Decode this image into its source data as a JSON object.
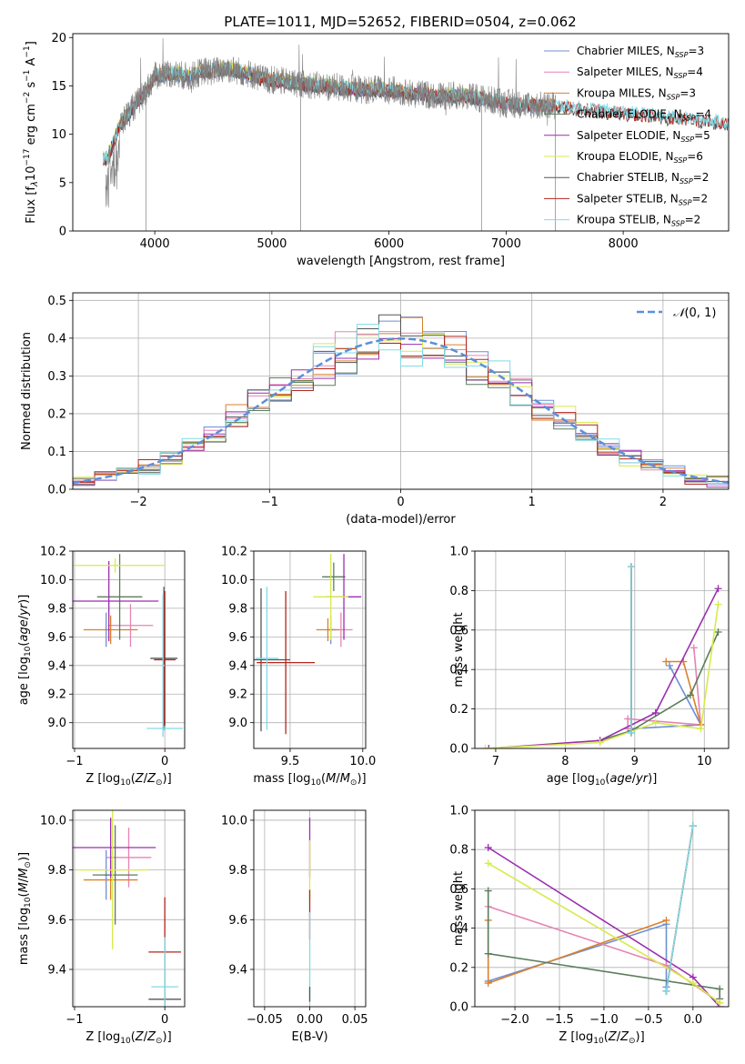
{
  "figure": {
    "title": "PLATE=1011, MJD=52652, FIBERID=0504, z=0.062"
  },
  "series_colors": {
    "Chabrier MILES": "#6c8fd6",
    "Salpeter MILES": "#e584b5",
    "Kroupa MILES": "#d9812c",
    "Chabrier ELODIE": "#5b7d5b",
    "Salpeter ELODIE": "#9b2fb0",
    "Kroupa ELODIE": "#d8ea4c",
    "Chabrier STELIB": "#555555",
    "Salpeter STELIB": "#b3261e",
    "Kroupa STELIB": "#80dbe6"
  },
  "chart_data": [
    {
      "id": "spectrum",
      "type": "line",
      "xlabel": "wavelength [Angstrom, rest frame]",
      "ylabel": "Flux [f_λ 10^-17 erg cm^-2 s^-1 A^-1]",
      "xlim": [
        3300,
        8900
      ],
      "ylim": [
        0,
        20.4
      ],
      "xticks": [
        4000,
        5000,
        6000,
        7000,
        8000
      ],
      "yticks": [
        0,
        5,
        10,
        15,
        20
      ],
      "grid": false,
      "legend_position": "top-right",
      "legend": [
        {
          "label": "Chabrier MILES, N_SSP=3",
          "series": "Chabrier MILES"
        },
        {
          "label": "Salpeter MILES, N_SSP=4",
          "series": "Salpeter MILES"
        },
        {
          "label": "Kroupa MILES, N_SSP=3",
          "series": "Kroupa MILES"
        },
        {
          "label": "Chabrier ELODIE, N_SSP=4",
          "series": "Chabrier ELODIE"
        },
        {
          "label": "Salpeter ELODIE, N_SSP=5",
          "series": "Salpeter ELODIE"
        },
        {
          "label": "Kroupa ELODIE, N_SSP=6",
          "series": "Kroupa ELODIE"
        },
        {
          "label": "Chabrier STELIB, N_SSP=2",
          "series": "Chabrier STELIB"
        },
        {
          "label": "Salpeter STELIB, N_SSP=2",
          "series": "Salpeter STELIB"
        },
        {
          "label": "Kroupa STELIB, N_SSP=2",
          "series": "Kroupa STELIB"
        }
      ],
      "observed": {
        "x": [
          3600,
          3700,
          3800,
          3900,
          4000,
          4100,
          4200,
          4300,
          4400,
          4500,
          4600,
          4700,
          4800,
          4900,
          5000,
          5200,
          5400,
          5600,
          5800,
          6000,
          6200,
          6400,
          6600,
          6800,
          7000,
          7200,
          7400
        ],
        "y": [
          7.5,
          11.0,
          12.5,
          14.0,
          16.0,
          16.3,
          16.2,
          15.9,
          16.5,
          16.5,
          16.8,
          16.6,
          16.3,
          15.8,
          15.6,
          15.3,
          15.0,
          14.8,
          14.6,
          14.6,
          14.2,
          14.0,
          14.0,
          13.7,
          13.2,
          13.0,
          12.9
        ]
      },
      "model_end": {
        "Chabrier MILES": 7400,
        "Salpeter MILES": 7400,
        "Kroupa MILES": 7400,
        "Chabrier ELODIE": 6800,
        "Salpeter ELODIE": 6800,
        "Kroupa ELODIE": 6800,
        "Chabrier STELIB": 8950,
        "Salpeter STELIB": 8950,
        "Kroupa STELIB": 8950
      }
    },
    {
      "id": "residuals",
      "type": "line",
      "xlabel": "(data-model)/error",
      "ylabel": "Normed distribution",
      "xlim": [
        -2.5,
        2.5
      ],
      "ylim": [
        0,
        0.52
      ],
      "xticks": [
        -2,
        -1,
        0,
        1,
        2
      ],
      "yticks": [
        0.0,
        0.1,
        0.2,
        0.3,
        0.4,
        0.5
      ],
      "grid": true,
      "legend_position": "top-right",
      "legend": [
        {
          "label": "N(0, 1)"
        }
      ],
      "reference": {
        "name": "N(0, 1)",
        "mean": 0,
        "sigma": 1,
        "color": "#5b8fd9"
      },
      "histogram_bins": 30
    },
    {
      "id": "age-vs-Z",
      "type": "scatter",
      "xlabel": "Z [log10(Z/Z☉)]",
      "ylabel": "age [log10(age/yr)]",
      "xlim": [
        -1.02,
        0.22
      ],
      "ylim": [
        8.82,
        10.2
      ],
      "xticks": [
        -1,
        0
      ],
      "yticks": [
        9.0,
        9.2,
        9.4,
        9.6,
        9.8,
        10.0,
        10.2
      ],
      "grid": true,
      "points": [
        {
          "series": "Chabrier MILES",
          "x": -0.65,
          "y": 9.65,
          "xerr": 0.02,
          "yerr": 0.12
        },
        {
          "series": "Salpeter MILES",
          "x": -0.38,
          "y": 9.68,
          "xerr": 0.25,
          "yerr": 0.15
        },
        {
          "series": "Kroupa MILES",
          "x": -0.6,
          "y": 9.65,
          "xerr": 0.3,
          "yerr": 0.1
        },
        {
          "series": "Chabrier ELODIE",
          "x": -0.5,
          "y": 9.88,
          "xerr": 0.25,
          "yerr": 0.3
        },
        {
          "series": "Salpeter ELODIE",
          "x": -0.62,
          "y": 9.85,
          "xerr": 0.55,
          "yerr": 0.28
        },
        {
          "series": "Kroupa ELODIE",
          "x": -0.55,
          "y": 10.1,
          "xerr": 0.55,
          "yerr": 0.05
        },
        {
          "series": "Chabrier STELIB",
          "x": -0.01,
          "y": 9.45,
          "xerr": 0.15,
          "yerr": 0.5
        },
        {
          "series": "Salpeter STELIB",
          "x": 0.0,
          "y": 9.44,
          "xerr": 0.12,
          "yerr": 0.48
        },
        {
          "series": "Kroupa STELIB",
          "x": 0.0,
          "y": 8.96,
          "xerr": 0.2,
          "yerr": 0.02
        },
        {
          "series": "Kroupa STELIB",
          "x": -0.02,
          "y": 9.4,
          "xerr": 0.02,
          "yerr": 0.5
        }
      ]
    },
    {
      "id": "age-vs-mass",
      "type": "scatter",
      "xlabel": "mass [log10(M/M☉)]",
      "ylabel": "",
      "xlim": [
        9.25,
        10.02
      ],
      "ylim": [
        8.82,
        10.2
      ],
      "xticks": [
        9.5,
        10.0
      ],
      "yticks": [
        9.0,
        9.2,
        9.4,
        9.6,
        9.8,
        10.0,
        10.2
      ],
      "grid": true,
      "points": [
        {
          "series": "Chabrier MILES",
          "x": 9.78,
          "y": 9.65,
          "xerr": 0.03,
          "yerr": 0.1
        },
        {
          "series": "Salpeter MILES",
          "x": 9.85,
          "y": 9.65,
          "xerr": 0.08,
          "yerr": 0.12
        },
        {
          "series": "Kroupa MILES",
          "x": 9.76,
          "y": 9.65,
          "xerr": 0.08,
          "yerr": 0.08
        },
        {
          "series": "Chabrier ELODIE",
          "x": 9.8,
          "y": 10.02,
          "xerr": 0.08,
          "yerr": 0.1
        },
        {
          "series": "Salpeter ELODIE",
          "x": 9.87,
          "y": 9.88,
          "xerr": 0.12,
          "yerr": 0.3
        },
        {
          "series": "Kroupa ELODIE",
          "x": 9.78,
          "y": 9.88,
          "xerr": 0.12,
          "yerr": 0.3
        },
        {
          "series": "Chabrier STELIB",
          "x": 9.3,
          "y": 9.44,
          "xerr": 0.2,
          "yerr": 0.5
        },
        {
          "series": "Salpeter STELIB",
          "x": 9.47,
          "y": 9.42,
          "xerr": 0.2,
          "yerr": 0.5
        },
        {
          "series": "Kroupa STELIB",
          "x": 9.34,
          "y": 9.45,
          "xerr": 0.08,
          "yerr": 0.5
        }
      ]
    },
    {
      "id": "weight-vs-age",
      "type": "line",
      "xlabel": "age [log10(age/yr)]",
      "ylabel": "mass weight",
      "xlim": [
        6.7,
        10.35
      ],
      "ylim": [
        0,
        1.0
      ],
      "xticks": [
        7,
        8,
        9,
        10
      ],
      "yticks": [
        0.0,
        0.2,
        0.4,
        0.6,
        0.8,
        1.0
      ],
      "grid": true,
      "series": [
        {
          "name": "Chabrier MILES",
          "x": [
            9.5,
            9.95,
            8.95
          ],
          "y": [
            0.42,
            0.12,
            0.1
          ]
        },
        {
          "name": "Salpeter MILES",
          "x": [
            9.85,
            9.95,
            8.9,
            8.9
          ],
          "y": [
            0.51,
            0.12,
            0.15,
            0.1
          ]
        },
        {
          "name": "Kroupa MILES",
          "x": [
            9.45,
            9.7,
            9.95
          ],
          "y": [
            0.44,
            0.44,
            0.12
          ]
        },
        {
          "name": "Chabrier ELODIE",
          "x": [
            10.2,
            9.8,
            8.95,
            8.5
          ],
          "y": [
            0.59,
            0.27,
            0.09,
            0.04
          ]
        },
        {
          "name": "Salpeter ELODIE",
          "x": [
            10.2,
            9.3,
            8.5,
            6.9
          ],
          "y": [
            0.81,
            0.18,
            0.04,
            0.0
          ]
        },
        {
          "name": "Kroupa ELODIE",
          "x": [
            10.2,
            9.95,
            9.3,
            8.5,
            6.85
          ],
          "y": [
            0.73,
            0.1,
            0.13,
            0.03,
            0.0
          ]
        },
        {
          "name": "Chabrier STELIB",
          "x": [
            8.95,
            8.95
          ],
          "y": [
            0.92,
            0.08
          ]
        },
        {
          "name": "Salpeter STELIB",
          "x": [
            8.95,
            8.95
          ],
          "y": [
            0.92,
            0.08
          ]
        },
        {
          "name": "Kroupa STELIB",
          "x": [
            8.95,
            8.95
          ],
          "y": [
            0.92,
            0.08
          ]
        }
      ]
    },
    {
      "id": "mass-vs-Z",
      "type": "scatter",
      "xlabel": "Z [log10(Z/Z☉)]",
      "ylabel": "mass [log10(M/M☉)]",
      "xlim": [
        -1.02,
        0.22
      ],
      "ylim": [
        9.25,
        10.04
      ],
      "xticks": [
        -1,
        0
      ],
      "yticks": [
        9.4,
        9.6,
        9.8,
        10.0
      ],
      "grid": true,
      "points": [
        {
          "series": "Chabrier MILES",
          "x": -0.65,
          "y": 9.78,
          "xerr": 0.03,
          "yerr": 0.1
        },
        {
          "series": "Salpeter MILES",
          "x": -0.4,
          "y": 9.85,
          "xerr": 0.25,
          "yerr": 0.12
        },
        {
          "series": "Kroupa MILES",
          "x": -0.6,
          "y": 9.76,
          "xerr": 0.3,
          "yerr": 0.08
        },
        {
          "series": "Chabrier ELODIE",
          "x": -0.55,
          "y": 9.78,
          "xerr": 0.25,
          "yerr": 0.2
        },
        {
          "series": "Salpeter ELODIE",
          "x": -0.6,
          "y": 9.89,
          "xerr": 0.5,
          "yerr": 0.12
        },
        {
          "series": "Kroupa ELODIE",
          "x": -0.58,
          "y": 9.8,
          "xerr": 0.4,
          "yerr": 0.32
        },
        {
          "series": "Chabrier STELIB",
          "x": 0.0,
          "y": 9.28,
          "xerr": 0.18,
          "yerr": 0.02
        },
        {
          "series": "Salpeter STELIB",
          "x": 0.0,
          "y": 9.47,
          "xerr": 0.18,
          "yerr": 0.22
        },
        {
          "series": "Kroupa STELIB",
          "x": 0.0,
          "y": 9.33,
          "xerr": 0.15,
          "yerr": 0.2
        }
      ]
    },
    {
      "id": "mass-vs-EBV",
      "type": "scatter",
      "xlabel": "E(B-V)",
      "ylabel": "",
      "xlim": [
        -0.062,
        0.062
      ],
      "ylim": [
        9.25,
        10.04
      ],
      "xticks": [
        -0.05,
        0.0,
        0.05
      ],
      "yticks": [
        9.4,
        9.6,
        9.8,
        10.0
      ],
      "grid": true,
      "points": [
        {
          "series": "Salpeter ELODIE",
          "x": 0.0,
          "y": 9.89,
          "xerr": 0.0,
          "yerr": 0.12
        },
        {
          "series": "Kroupa ELODIE",
          "x": 0.0,
          "y": 9.8,
          "xerr": 0.0,
          "yerr": 0.12
        },
        {
          "series": "Salpeter STELIB",
          "x": 0.0,
          "y": 9.62,
          "xerr": 0.0,
          "yerr": 0.1
        },
        {
          "series": "Kroupa STELIB",
          "x": 0.0,
          "y": 9.45,
          "xerr": 0.0,
          "yerr": 0.18
        },
        {
          "series": "Chabrier STELIB",
          "x": 0.0,
          "y": 9.3,
          "xerr": 0.0,
          "yerr": 0.03
        }
      ]
    },
    {
      "id": "weight-vs-Z",
      "type": "line",
      "xlabel": "Z [log10(Z/Z☉)]",
      "ylabel": "mass weight",
      "xlim": [
        -2.45,
        0.4
      ],
      "ylim": [
        0,
        1.0
      ],
      "xticks": [
        -2.0,
        -1.5,
        -1.0,
        -0.5,
        0.0
      ],
      "yticks": [
        0.0,
        0.2,
        0.4,
        0.6,
        0.8,
        1.0
      ],
      "grid": true,
      "series": [
        {
          "name": "Chabrier MILES",
          "x": [
            -2.3,
            -0.3,
            -0.3
          ],
          "y": [
            0.13,
            0.42,
            0.1
          ]
        },
        {
          "name": "Salpeter MILES",
          "x": [
            -2.3,
            -0.3,
            0.3
          ],
          "y": [
            0.51,
            0.21,
            0.02
          ]
        },
        {
          "name": "Kroupa MILES",
          "x": [
            -2.3,
            -2.3,
            -0.3
          ],
          "y": [
            0.44,
            0.12,
            0.44
          ]
        },
        {
          "name": "Chabrier ELODIE",
          "x": [
            -2.3,
            -2.3,
            0.3,
            0.3
          ],
          "y": [
            0.59,
            0.27,
            0.09,
            0.04
          ]
        },
        {
          "name": "Salpeter ELODIE",
          "x": [
            -2.3,
            0.0,
            0.3
          ],
          "y": [
            0.81,
            0.15,
            0.0
          ]
        },
        {
          "name": "Kroupa ELODIE",
          "x": [
            -2.3,
            0.0,
            0.3
          ],
          "y": [
            0.73,
            0.12,
            0.02
          ]
        },
        {
          "name": "Chabrier STELIB",
          "x": [
            -0.3,
            0.0
          ],
          "y": [
            0.08,
            0.92
          ]
        },
        {
          "name": "Salpeter STELIB",
          "x": [
            -0.3,
            0.0
          ],
          "y": [
            0.08,
            0.92
          ]
        },
        {
          "name": "Kroupa STELIB",
          "x": [
            -0.3,
            0.0
          ],
          "y": [
            0.08,
            0.92
          ]
        }
      ]
    }
  ]
}
